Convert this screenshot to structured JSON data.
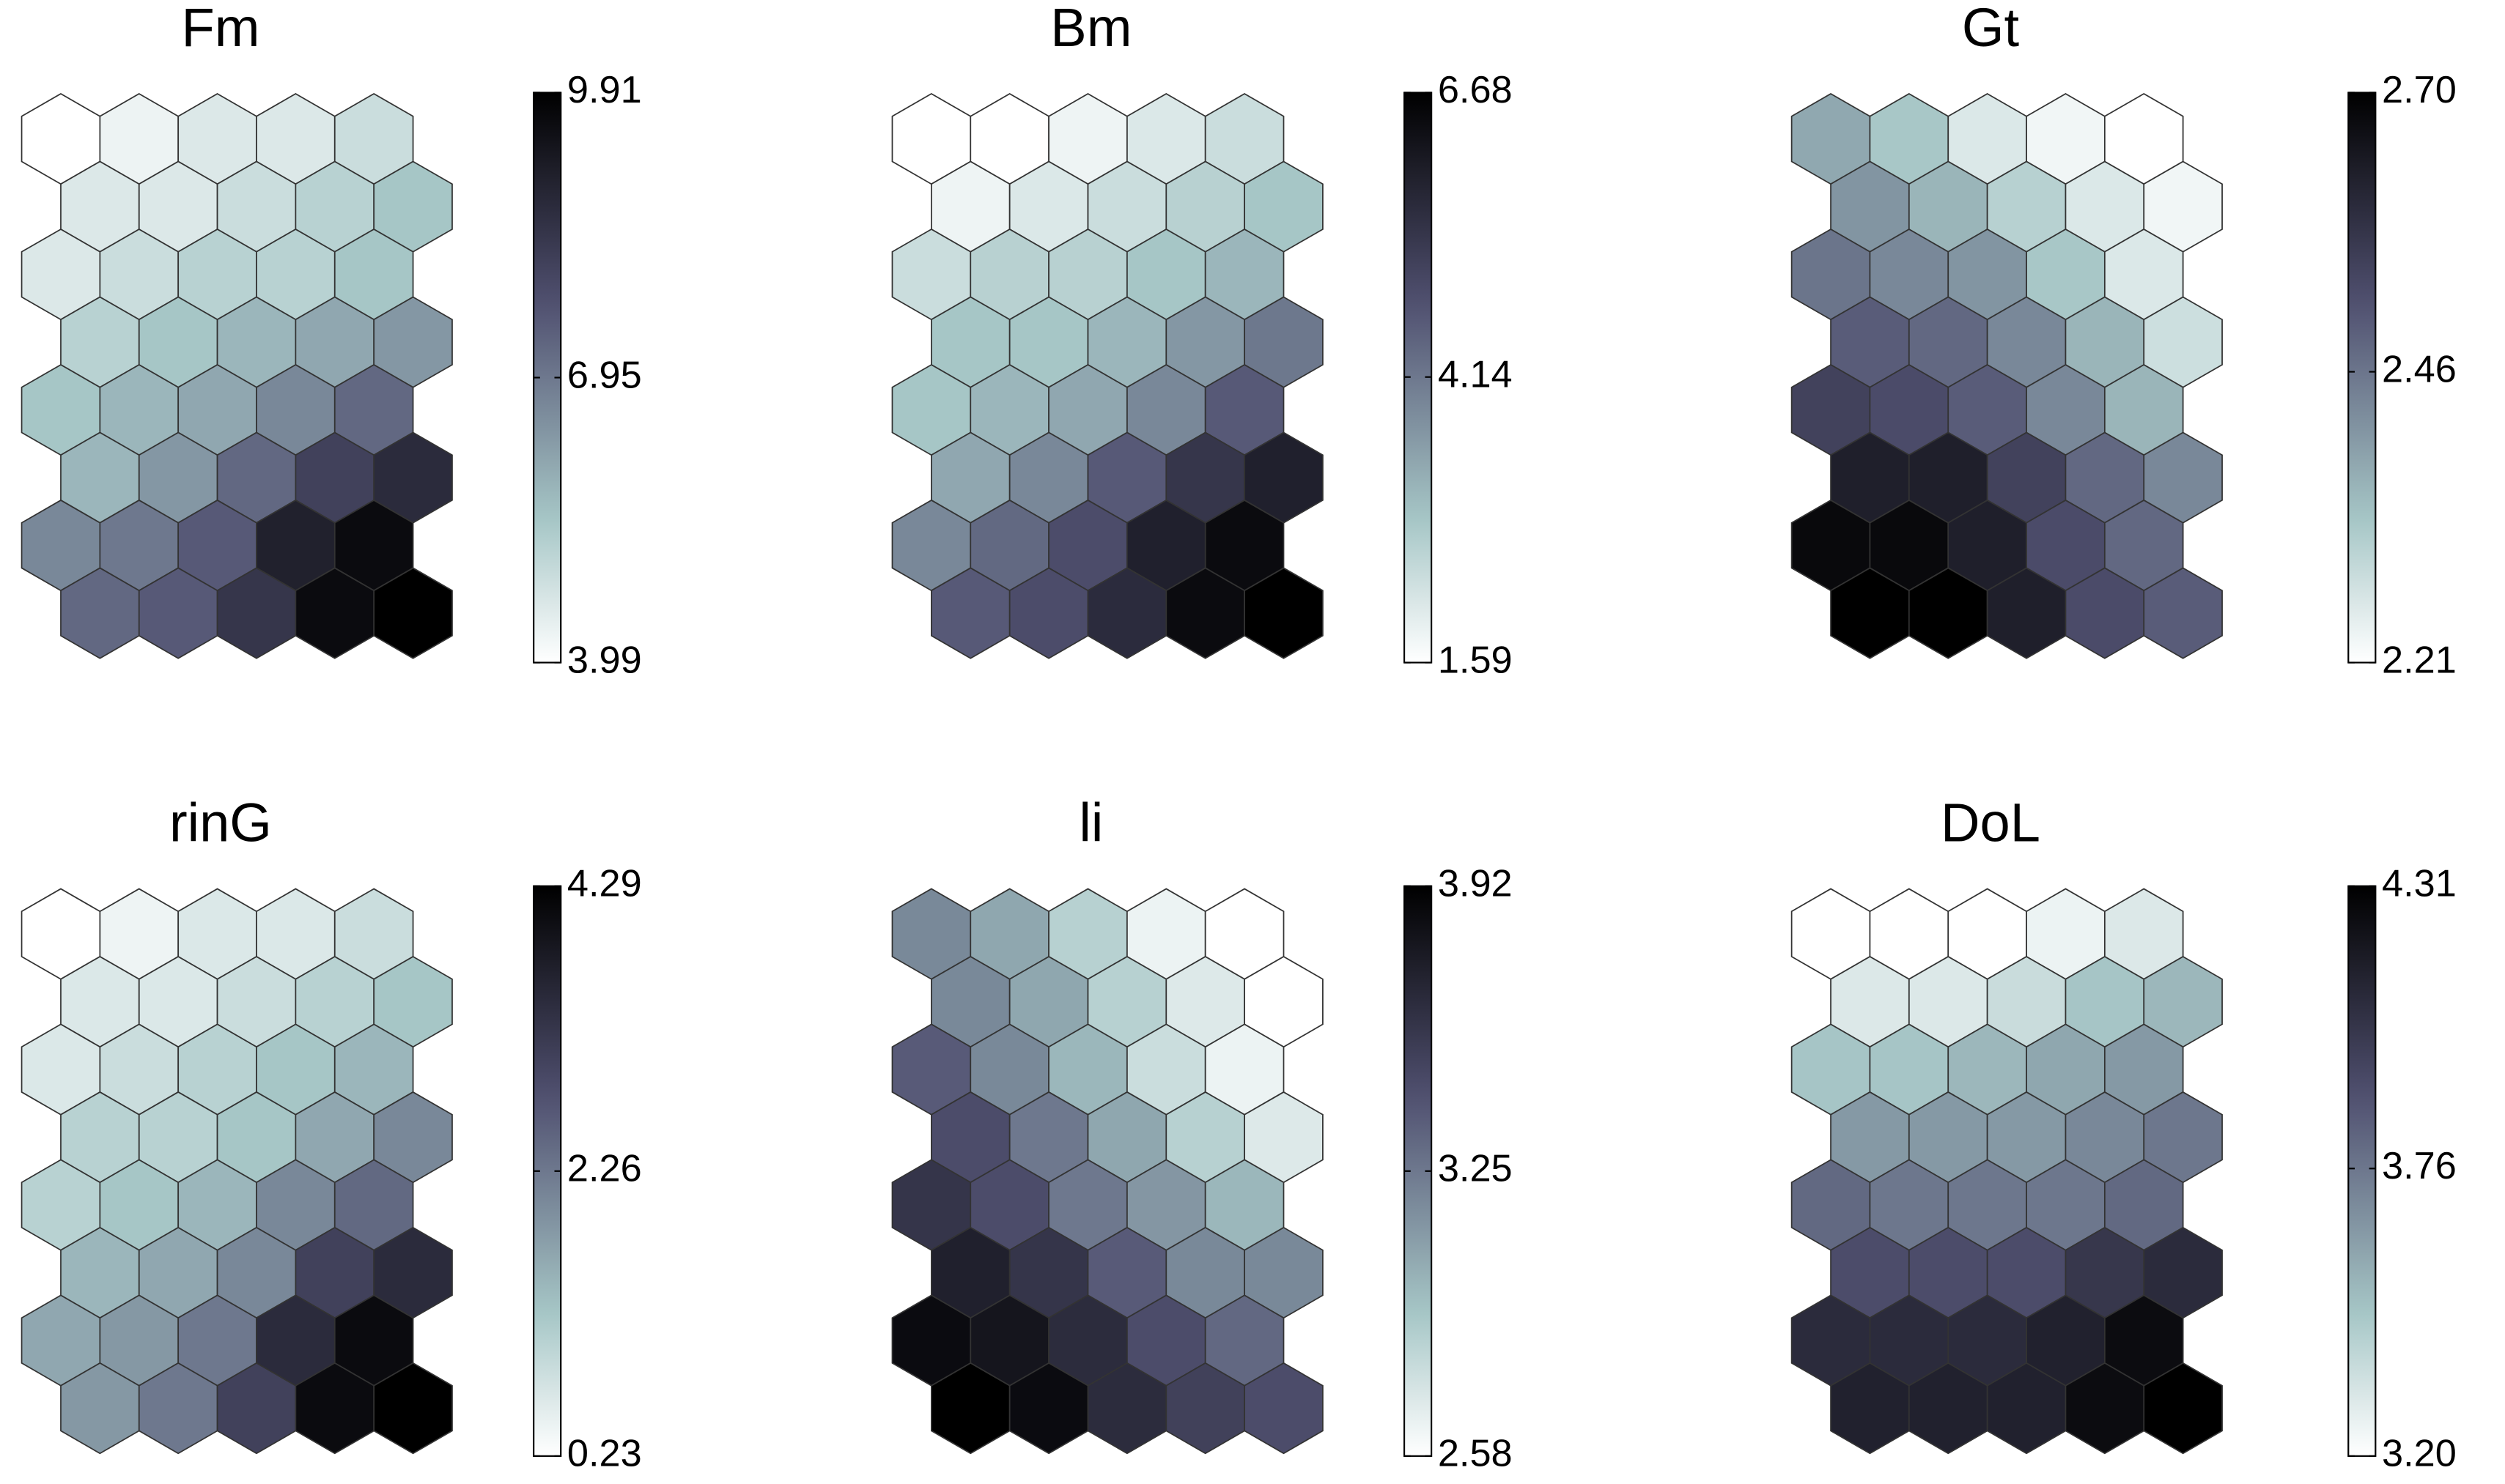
{
  "chart_data": [
    {
      "type": "hexmap",
      "title": "Fm",
      "colormap": "bone_r",
      "ylim": [
        3.99,
        9.91
      ],
      "yticks": [
        3.99,
        6.95,
        9.91
      ],
      "values": [
        [
          3.99,
          4.29,
          4.58,
          4.58,
          4.88
        ],
        [
          4.58,
          4.58,
          4.88,
          5.17,
          5.47
        ],
        [
          4.58,
          4.88,
          5.17,
          5.17,
          5.47
        ],
        [
          5.17,
          5.47,
          5.77,
          6.06,
          6.36
        ],
        [
          5.47,
          5.77,
          6.06,
          6.65,
          7.25
        ],
        [
          5.77,
          6.36,
          7.25,
          8.13,
          8.73
        ],
        [
          6.65,
          6.95,
          7.54,
          9.02,
          9.61
        ],
        [
          7.25,
          7.54,
          8.43,
          9.61,
          9.91
        ]
      ]
    },
    {
      "type": "hexmap",
      "title": "Bm",
      "colormap": "bone_r",
      "ylim": [
        1.59,
        6.68
      ],
      "yticks": [
        1.59,
        4.14,
        6.68
      ],
      "values": [
        [
          1.59,
          1.59,
          1.84,
          2.1,
          2.35
        ],
        [
          1.84,
          2.1,
          2.35,
          2.61,
          2.86
        ],
        [
          2.35,
          2.61,
          2.61,
          2.86,
          3.12
        ],
        [
          2.86,
          2.86,
          3.12,
          3.63,
          4.14
        ],
        [
          2.86,
          3.12,
          3.37,
          3.88,
          4.64
        ],
        [
          3.37,
          3.88,
          4.64,
          5.41,
          5.92
        ],
        [
          3.88,
          4.39,
          4.9,
          5.92,
          6.43
        ],
        [
          4.64,
          4.9,
          5.66,
          6.43,
          6.68
        ]
      ]
    },
    {
      "type": "hexmap",
      "title": "Gt",
      "colormap": "bone_r",
      "ylim": [
        2.21,
        2.7
      ],
      "yticks": [
        2.21,
        2.46,
        {
          "value": 2.7,
          "label": "2.70"
        }
      ],
      "values": [
        [
          2.38,
          2.33,
          2.26,
          2.23,
          2.21
        ],
        [
          2.41,
          2.36,
          2.31,
          2.26,
          2.23
        ],
        [
          2.46,
          2.43,
          2.41,
          2.33,
          2.26
        ],
        [
          2.5,
          2.48,
          2.43,
          2.36,
          2.28
        ],
        [
          2.55,
          2.53,
          2.5,
          2.43,
          2.36
        ],
        [
          2.63,
          2.63,
          2.55,
          2.48,
          2.43
        ],
        [
          2.68,
          2.68,
          2.63,
          2.53,
          2.48
        ],
        [
          2.7,
          2.7,
          2.63,
          2.53,
          2.5
        ]
      ]
    },
    {
      "type": "hexmap",
      "title": "rinG",
      "colormap": "bone_r",
      "ylim": [
        0.23,
        4.29
      ],
      "yticks": [
        0.23,
        2.26,
        4.29
      ],
      "values": [
        [
          0.23,
          0.43,
          0.64,
          0.64,
          0.84
        ],
        [
          0.64,
          0.64,
          0.84,
          1.04,
          1.25
        ],
        [
          0.64,
          0.84,
          1.04,
          1.25,
          1.45
        ],
        [
          1.04,
          1.04,
          1.25,
          1.65,
          2.06
        ],
        [
          1.04,
          1.25,
          1.45,
          2.06,
          2.46
        ],
        [
          1.45,
          1.65,
          2.06,
          3.07,
          3.48
        ],
        [
          1.65,
          1.85,
          2.26,
          3.48,
          4.09
        ],
        [
          1.85,
          2.26,
          3.07,
          4.09,
          4.29
        ]
      ]
    },
    {
      "type": "hexmap",
      "title": "li",
      "colormap": "bone_r",
      "ylim": [
        2.58,
        3.92
      ],
      "yticks": [
        2.58,
        3.25,
        3.92
      ],
      "values": [
        [
          3.18,
          3.05,
          2.85,
          2.65,
          2.58
        ],
        [
          3.18,
          3.05,
          2.85,
          2.71,
          2.58
        ],
        [
          3.38,
          3.18,
          2.98,
          2.78,
          2.65
        ],
        [
          3.45,
          3.25,
          3.05,
          2.85,
          2.71
        ],
        [
          3.59,
          3.45,
          3.25,
          3.12,
          2.98
        ],
        [
          3.72,
          3.59,
          3.38,
          3.18,
          3.18
        ],
        [
          3.85,
          3.79,
          3.65,
          3.45,
          3.32
        ],
        [
          3.92,
          3.85,
          3.65,
          3.52,
          3.45
        ]
      ]
    },
    {
      "type": "hexmap",
      "title": "DoL",
      "colormap": "bone_r",
      "ylim": [
        3.2,
        4.31
      ],
      "yticks": [
        {
          "value": 3.2,
          "label": "3.20"
        },
        3.76,
        4.31
      ],
      "values": [
        [
          3.2,
          3.2,
          3.2,
          3.26,
          3.31
        ],
        [
          3.31,
          3.31,
          3.37,
          3.48,
          3.53
        ],
        [
          3.48,
          3.48,
          3.53,
          3.59,
          3.64
        ],
        [
          3.64,
          3.64,
          3.64,
          3.7,
          3.76
        ],
        [
          3.81,
          3.76,
          3.76,
          3.76,
          3.81
        ],
        [
          3.92,
          3.92,
          3.92,
          4.03,
          4.09
        ],
        [
          4.09,
          4.09,
          4.09,
          4.14,
          4.25
        ],
        [
          4.14,
          4.14,
          4.14,
          4.25,
          4.31
        ]
      ]
    }
  ]
}
